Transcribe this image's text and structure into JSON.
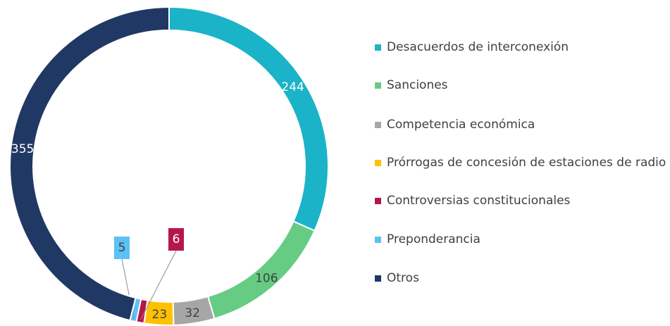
{
  "chart_data": {
    "type": "donut",
    "categories": [
      "Desacuerdos de interconexión",
      "Sanciones",
      "Competencia económica",
      "Prórrogas de concesión de estaciones de radio",
      "Controversias constitucionales",
      "Preponderancia",
      "Otros"
    ],
    "values": [
      244,
      106,
      32,
      23,
      6,
      5,
      355
    ],
    "colors": [
      "#1ab3c8",
      "#66cc84",
      "#a6a6a6",
      "#ffc000",
      "#b5174d",
      "#5cc1f5",
      "#203864"
    ]
  }
}
